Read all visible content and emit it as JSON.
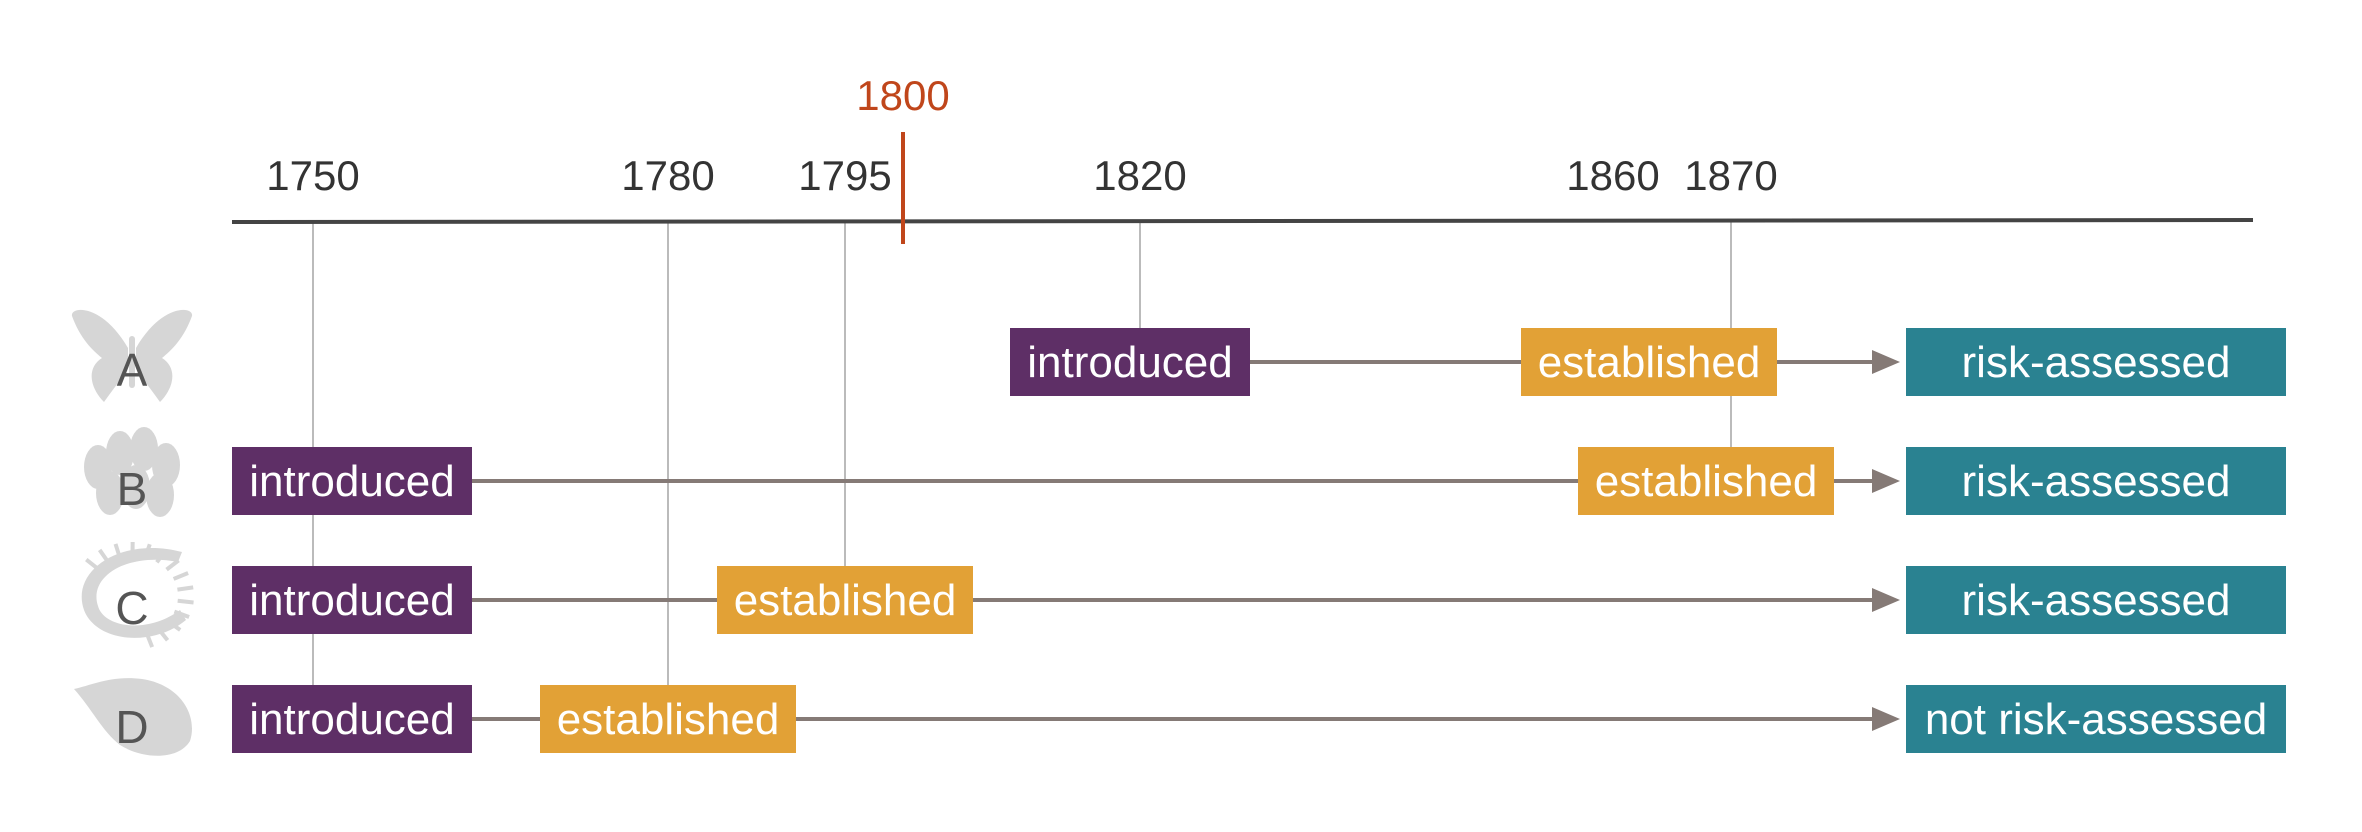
{
  "timeline": {
    "highlight": {
      "year": 1800,
      "label": "1800",
      "color": "#c0461b"
    },
    "ticks": [
      {
        "year": 1750,
        "label": "1750"
      },
      {
        "year": 1780,
        "label": "1780"
      },
      {
        "year": 1795,
        "label": "1795"
      },
      {
        "year": 1820,
        "label": "1820"
      },
      {
        "year": 1860,
        "label": "1860"
      },
      {
        "year": 1870,
        "label": "1870"
      }
    ]
  },
  "colors": {
    "introduced": "#5e2f66",
    "established": "#e2a136",
    "assessed": "#2a8291",
    "arrow": "#857a76",
    "axis": "#444444",
    "guide": "#bbbbbb",
    "icon": "#d6d6d6",
    "label_text": "#333333"
  },
  "rows": [
    {
      "id": "A",
      "letter": "A",
      "icon": "butterfly-icon",
      "introduced": {
        "year": 1820,
        "label": "introduced"
      },
      "established": {
        "year": 1870,
        "label": "established"
      },
      "outcome": "risk-assessed"
    },
    {
      "id": "B",
      "letter": "B",
      "icon": "coral-icon",
      "introduced": {
        "year": 1750,
        "label": "introduced"
      },
      "established": {
        "year": 1870,
        "label": "established"
      },
      "outcome": "risk-assessed"
    },
    {
      "id": "C",
      "letter": "C",
      "icon": "centipede-icon",
      "introduced": {
        "year": 1750,
        "label": "introduced"
      },
      "established": {
        "year": 1795,
        "label": "established"
      },
      "outcome": "risk-assessed"
    },
    {
      "id": "D",
      "letter": "D",
      "icon": "snail-shell-icon",
      "introduced": {
        "year": 1750,
        "label": "introduced"
      },
      "established": {
        "year": 1780,
        "label": "established"
      },
      "outcome": "not risk-assessed"
    }
  ]
}
